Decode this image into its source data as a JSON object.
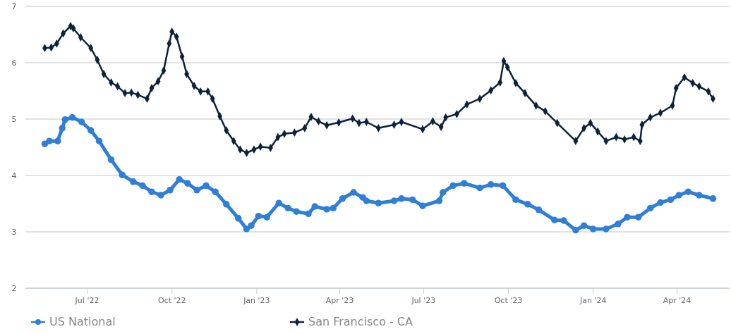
{
  "chart_data": {
    "type": "line",
    "xlim": [
      "2022-04-25",
      "2024-05-28"
    ],
    "ylim": [
      2,
      7
    ],
    "yticks": [
      2,
      3,
      4,
      5,
      6,
      7
    ],
    "xticks": [
      {
        "value": "2022-07-01",
        "label": "Jul '22"
      },
      {
        "value": "2022-10-01",
        "label": "Oct '22"
      },
      {
        "value": "2023-01-01",
        "label": "Jan '23"
      },
      {
        "value": "2023-04-01",
        "label": "Apr '23"
      },
      {
        "value": "2023-07-01",
        "label": "Jul '23"
      },
      {
        "value": "2023-10-01",
        "label": "Oct '23"
      },
      {
        "value": "2024-01-01",
        "label": "Jan '24"
      },
      {
        "value": "2024-04-01",
        "label": "Apr '24"
      }
    ],
    "grid": "y",
    "legend": "bottom left",
    "series": [
      {
        "name": "US National",
        "color": "#2f7ed8",
        "marker": "circle",
        "x": [
          "2022-05-16",
          "2022-05-21",
          "2022-05-30",
          "2022-06-04",
          "2022-06-07",
          "2022-06-15",
          "2022-06-25",
          "2022-07-05",
          "2022-07-14",
          "2022-07-27",
          "2022-08-08",
          "2022-08-20",
          "2022-08-30",
          "2022-09-09",
          "2022-09-19",
          "2022-09-29",
          "2022-10-09",
          "2022-10-18",
          "2022-10-28",
          "2022-11-07",
          "2022-11-17",
          "2022-11-29",
          "2022-12-12",
          "2022-12-21",
          "2022-12-26",
          "2023-01-03",
          "2023-01-12",
          "2023-01-25",
          "2023-02-04",
          "2023-02-13",
          "2023-02-26",
          "2023-03-05",
          "2023-03-18",
          "2023-03-25",
          "2023-04-04",
          "2023-04-16",
          "2023-04-26",
          "2023-04-30",
          "2023-05-13",
          "2023-05-30",
          "2023-06-07",
          "2023-06-19",
          "2023-06-30",
          "2023-07-18",
          "2023-07-22",
          "2023-08-02",
          "2023-08-14",
          "2023-08-31",
          "2023-09-12",
          "2023-09-25",
          "2023-10-09",
          "2023-10-22",
          "2023-11-03",
          "2023-11-20",
          "2023-11-30",
          "2023-12-13",
          "2023-12-22",
          "2024-01-01",
          "2024-01-15",
          "2024-01-28",
          "2024-02-07",
          "2024-02-19",
          "2024-03-03",
          "2024-03-14",
          "2024-03-25",
          "2024-04-03",
          "2024-04-13",
          "2024-04-25",
          "2024-05-10"
        ],
        "values": [
          4.56,
          4.61,
          4.61,
          4.84,
          4.99,
          5.03,
          4.95,
          4.8,
          4.61,
          4.28,
          4.01,
          3.89,
          3.82,
          3.71,
          3.65,
          3.74,
          3.93,
          3.86,
          3.74,
          3.82,
          3.71,
          3.49,
          3.24,
          3.05,
          3.11,
          3.28,
          3.26,
          3.51,
          3.42,
          3.36,
          3.32,
          3.45,
          3.4,
          3.42,
          3.59,
          3.7,
          3.61,
          3.55,
          3.51,
          3.55,
          3.59,
          3.57,
          3.46,
          3.55,
          3.7,
          3.82,
          3.86,
          3.78,
          3.84,
          3.82,
          3.57,
          3.49,
          3.39,
          3.21,
          3.2,
          3.03,
          3.11,
          3.05,
          3.05,
          3.14,
          3.26,
          3.26,
          3.42,
          3.52,
          3.57,
          3.65,
          3.71,
          3.65,
          3.59
        ]
      },
      {
        "name": "San Francisco - CA",
        "color": "#0d233a",
        "marker": "diamond",
        "x": [
          "2022-05-16",
          "2022-05-23",
          "2022-05-29",
          "2022-06-05",
          "2022-06-13",
          "2022-06-16",
          "2022-06-24",
          "2022-07-05",
          "2022-07-12",
          "2022-07-19",
          "2022-07-27",
          "2022-08-03",
          "2022-08-11",
          "2022-08-18",
          "2022-08-25",
          "2022-09-04",
          "2022-09-09",
          "2022-09-16",
          "2022-09-22",
          "2022-09-28",
          "2022-10-01",
          "2022-10-06",
          "2022-10-12",
          "2022-10-17",
          "2022-10-25",
          "2022-11-01",
          "2022-11-09",
          "2022-11-14",
          "2022-11-22",
          "2022-11-29",
          "2022-12-07",
          "2022-12-14",
          "2022-12-21",
          "2022-12-29",
          "2023-01-05",
          "2023-01-16",
          "2023-01-24",
          "2023-01-31",
          "2023-02-11",
          "2023-02-22",
          "2023-03-01",
          "2023-03-09",
          "2023-03-18",
          "2023-03-31",
          "2023-04-15",
          "2023-04-22",
          "2023-04-30",
          "2023-05-13",
          "2023-05-30",
          "2023-06-07",
          "2023-06-30",
          "2023-07-11",
          "2023-07-20",
          "2023-07-25",
          "2023-08-06",
          "2023-08-17",
          "2023-08-31",
          "2023-09-12",
          "2023-09-22",
          "2023-09-26",
          "2023-09-30",
          "2023-10-09",
          "2023-10-19",
          "2023-10-31",
          "2023-11-10",
          "2023-11-23",
          "2023-12-13",
          "2023-12-22",
          "2023-12-29",
          "2024-01-06",
          "2024-01-15",
          "2024-01-26",
          "2024-02-04",
          "2024-02-14",
          "2024-02-21",
          "2024-02-23",
          "2024-03-03",
          "2024-03-14",
          "2024-03-27",
          "2024-03-31",
          "2024-04-09",
          "2024-04-18",
          "2024-04-25",
          "2024-05-05",
          "2024-05-10"
        ],
        "values": [
          6.26,
          6.27,
          6.34,
          6.52,
          6.65,
          6.61,
          6.45,
          6.26,
          6.05,
          5.8,
          5.65,
          5.58,
          5.46,
          5.47,
          5.43,
          5.36,
          5.55,
          5.67,
          5.86,
          6.34,
          6.55,
          6.46,
          6.11,
          5.8,
          5.59,
          5.49,
          5.49,
          5.36,
          5.05,
          4.8,
          4.61,
          4.46,
          4.4,
          4.46,
          4.51,
          4.49,
          4.68,
          4.74,
          4.76,
          4.84,
          5.04,
          4.96,
          4.89,
          4.94,
          5.01,
          4.93,
          4.95,
          4.84,
          4.9,
          4.95,
          4.82,
          4.96,
          4.86,
          5.03,
          5.09,
          5.26,
          5.36,
          5.51,
          5.65,
          6.03,
          5.92,
          5.64,
          5.46,
          5.24,
          5.14,
          4.93,
          4.61,
          4.84,
          4.93,
          4.78,
          4.61,
          4.68,
          4.64,
          4.68,
          4.61,
          4.9,
          5.03,
          5.11,
          5.24,
          5.55,
          5.74,
          5.64,
          5.58,
          5.49,
          5.36
        ]
      }
    ]
  }
}
